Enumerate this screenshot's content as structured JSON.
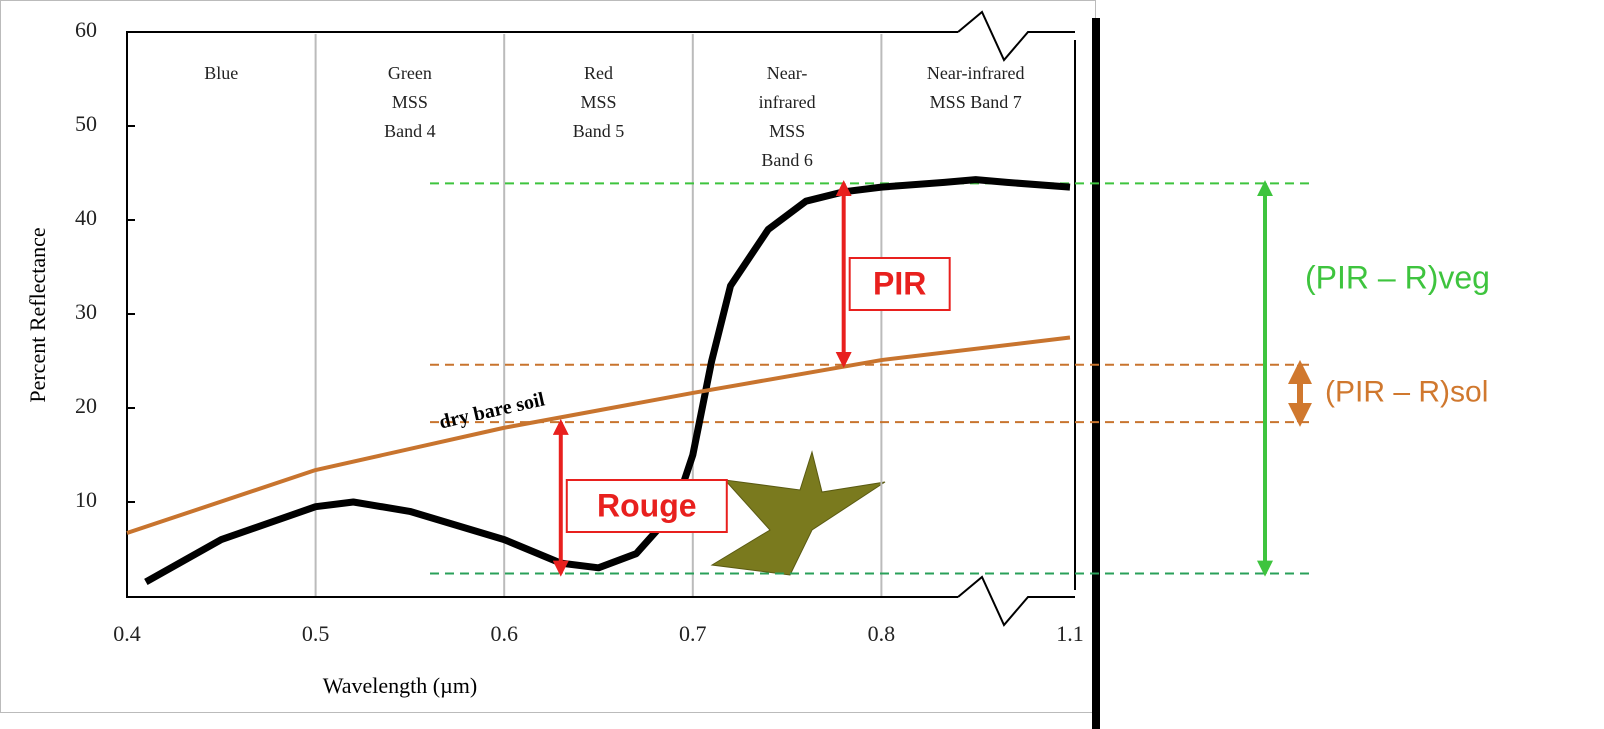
{
  "chart_data": {
    "type": "line",
    "xlabel": "Wavelength (µm)",
    "ylabel": "Percent Reflectance",
    "xlim": [
      0.4,
      1.1
    ],
    "xticks": [
      0.4,
      0.5,
      0.6,
      0.7,
      0.8,
      1.1
    ],
    "ylim": [
      0,
      60
    ],
    "yticks": [
      10,
      20,
      30,
      40,
      50,
      60
    ],
    "grid": true,
    "bands": [
      [
        "Blue"
      ],
      [
        "Green",
        "MSS",
        "Band 4"
      ],
      [
        "Red",
        "MSS",
        "Band 5"
      ],
      [
        "Near-",
        "infrared",
        "MSS",
        "Band 6"
      ],
      [
        "Near-infrared",
        "MSS Band 7"
      ]
    ],
    "series": [
      {
        "color": "#000000",
        "x": [
          0.41,
          0.45,
          0.5,
          0.52,
          0.55,
          0.6,
          0.63,
          0.65,
          0.67,
          0.69,
          0.7,
          0.71,
          0.72,
          0.74,
          0.76,
          0.78,
          0.8,
          0.9,
          0.95,
          1.0,
          1.1
        ],
        "values": [
          1.5,
          6,
          9.5,
          10,
          9,
          6,
          3.5,
          3,
          4.5,
          9,
          15,
          25,
          33,
          39,
          42,
          43,
          43.5,
          44,
          44.3,
          44,
          43.5
        ]
      },
      {
        "name": "dry bare soil",
        "color": "#c8742e",
        "x": [
          0.4,
          0.5,
          0.6,
          0.7,
          0.8,
          1.1
        ],
        "values": [
          6.7,
          13.4,
          17.9,
          21.6,
          25.1,
          27.5
        ]
      }
    ],
    "reference_lines": [
      {
        "value": 43.9,
        "color": "#3ec43e"
      },
      {
        "value": 2.4,
        "color": "#2aa05a"
      },
      {
        "value": 24.6,
        "color": "#c8742e"
      },
      {
        "value": 18.5,
        "color": "#c8742e"
      }
    ],
    "arrows": [
      {
        "label": "PIR",
        "x": 0.78,
        "from": 24.6,
        "to": 43.9,
        "color": "#e8201e"
      },
      {
        "label": "Rouge",
        "x": 0.63,
        "from": 2.4,
        "to": 18.5,
        "color": "#e8201e"
      },
      {
        "label": "(PIR – R)veg",
        "from": 2.4,
        "to": 43.9,
        "color": "#3ec43e"
      },
      {
        "label": "(PIR – R)sol",
        "from": 18.5,
        "to": 24.6,
        "color": "#d0782e"
      }
    ]
  }
}
